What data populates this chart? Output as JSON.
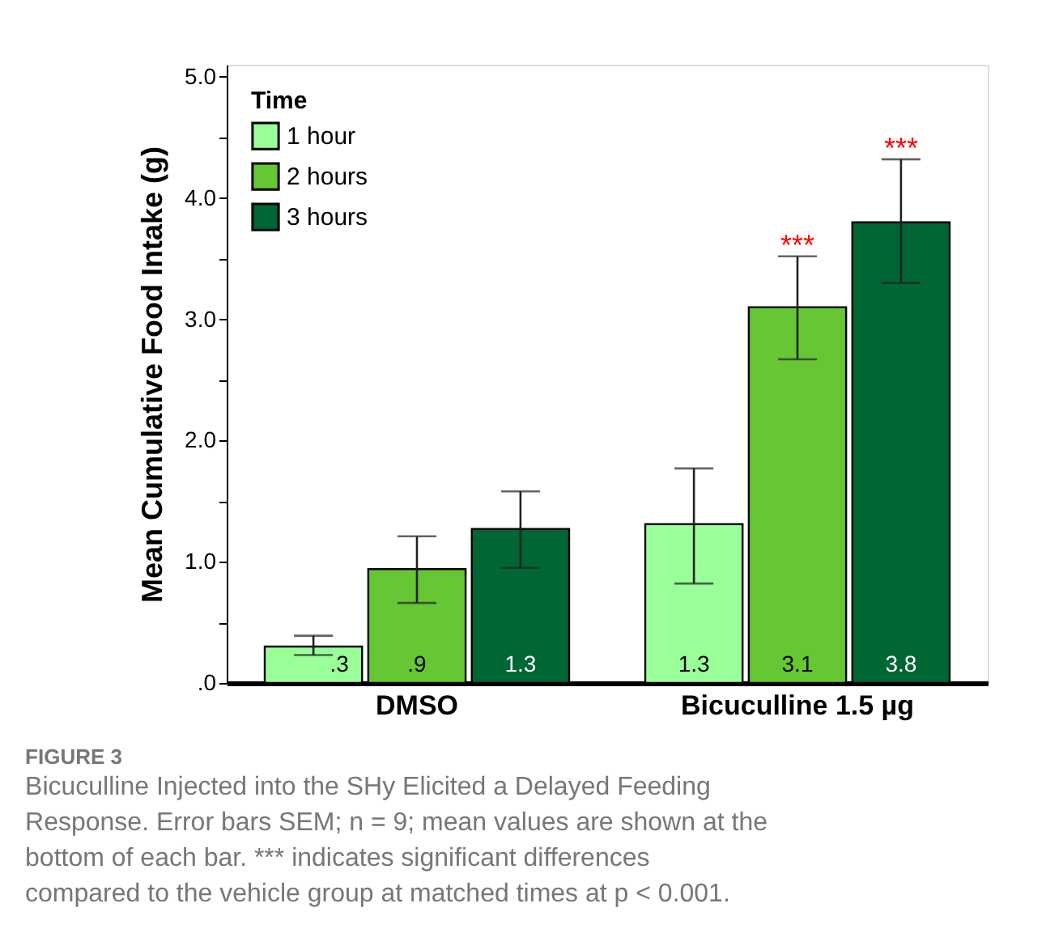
{
  "chart_data": {
    "type": "bar",
    "ylabel": "Mean Cumulative Food Intake (g)",
    "legend_title": "Time",
    "legend": "top left",
    "grid": false,
    "categories": [
      "DMSO",
      "Bicuculline 1.5 µg"
    ],
    "series": [
      {
        "name": "1 hour",
        "color": "#99ff99",
        "values": [
          0.3,
          1.31
        ],
        "errors": [
          [
            0.23,
            0.39
          ],
          [
            0.82,
            1.77
          ]
        ],
        "value_labels": [
          ".3",
          "1.3"
        ]
      },
      {
        "name": "2 hours",
        "color": "#66c633",
        "values": [
          0.94,
          3.1
        ],
        "errors": [
          [
            0.66,
            1.21
          ],
          [
            2.67,
            3.52
          ]
        ],
        "value_labels": [
          ".9",
          "3.1"
        ]
      },
      {
        "name": "3 hours",
        "color": "#006633",
        "values": [
          1.27,
          3.8
        ],
        "errors": [
          [
            0.95,
            1.58
          ],
          [
            3.3,
            4.32
          ]
        ],
        "value_labels": [
          "1.3",
          "3.8"
        ]
      }
    ],
    "ylim": [
      0,
      5.1
    ],
    "yticks": [
      {
        "value": 0,
        "label": ".0"
      },
      {
        "value": 0.5,
        "label": null
      },
      {
        "value": 1,
        "label": "1.0"
      },
      {
        "value": 1.5,
        "label": null
      },
      {
        "value": 2,
        "label": "2.0"
      },
      {
        "value": 2.5,
        "label": null
      },
      {
        "value": 3,
        "label": "3.0"
      },
      {
        "value": 3.5,
        "label": null
      },
      {
        "value": 4,
        "label": "4.0"
      },
      {
        "value": 4.5,
        "label": null
      },
      {
        "value": 5,
        "label": "5.0"
      }
    ],
    "annotations": [
      {
        "text": "***",
        "x": "Bicuculline 1.5 µg",
        "y": 3.52
      },
      "***",
      "FIGURE 3",
      "Bicuculline Injected into the SHy Elicited a Delayed Feeding Response. Error bars SEM; n = 9; mean values are shown at the bottom of each bar. *** indicates significant differences compared to the vehicle group at matched times at p < 0.001."
    ]
  }
}
